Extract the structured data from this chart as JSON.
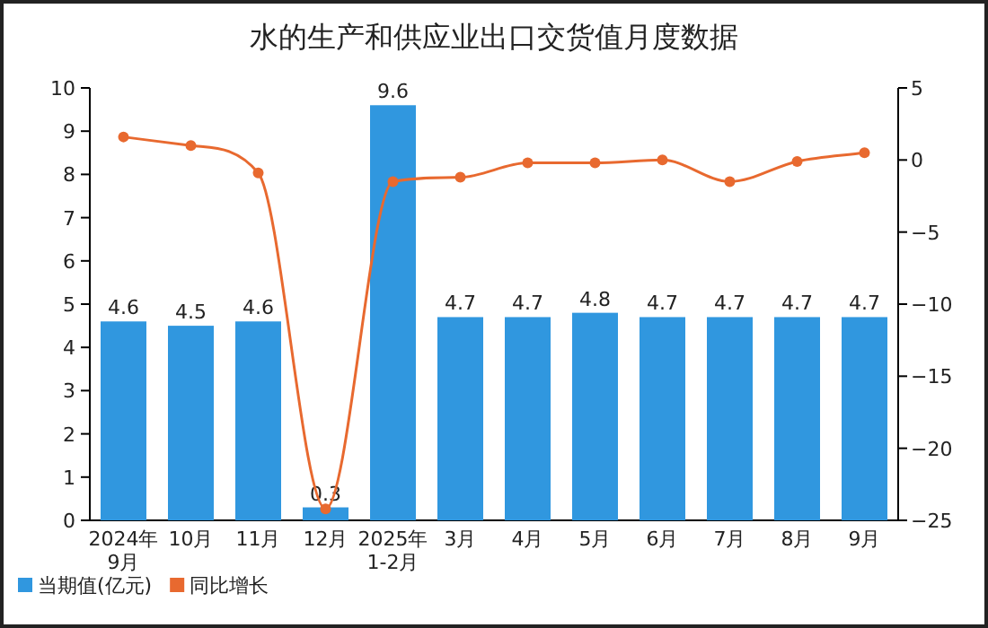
{
  "chart_data": {
    "type": "bar",
    "title": "水的生产和供应业出口交货值月度数据",
    "categories": [
      "2024年\n9月",
      "10月",
      "11月",
      "12月",
      "2025年\n1-2月",
      "3月",
      "4月",
      "5月",
      "6月",
      "7月",
      "8月",
      "9月"
    ],
    "series": [
      {
        "name": "当期值(亿元)",
        "color": "#3097df",
        "values": [
          4.6,
          4.5,
          4.6,
          0.3,
          9.6,
          4.7,
          4.7,
          4.8,
          4.7,
          4.7,
          4.7,
          4.7
        ],
        "value_labels": [
          "4.6",
          "4.5",
          "4.6",
          "0.3",
          "9.6",
          "4.7",
          "4.7",
          "4.8",
          "4.7",
          "4.7",
          "4.7",
          "4.7"
        ]
      },
      {
        "name": "同比增长",
        "type": "line",
        "axis": "y2",
        "color": "#e8692f",
        "values": [
          1.6,
          1.0,
          -0.9,
          -24.2,
          -1.5,
          -1.2,
          -0.2,
          -0.2,
          0.0,
          -1.5,
          -0.1,
          0.5
        ]
      }
    ],
    "ylim": [
      0,
      10
    ],
    "yticks": [
      0,
      1,
      2,
      3,
      4,
      5,
      6,
      7,
      8,
      9,
      10
    ],
    "y2lim": [
      -25,
      5
    ],
    "y2ticks": [
      -25,
      -20,
      -15,
      -10,
      -5,
      0,
      5
    ],
    "marker": "circle",
    "grid": false,
    "legend": "bottom left"
  }
}
